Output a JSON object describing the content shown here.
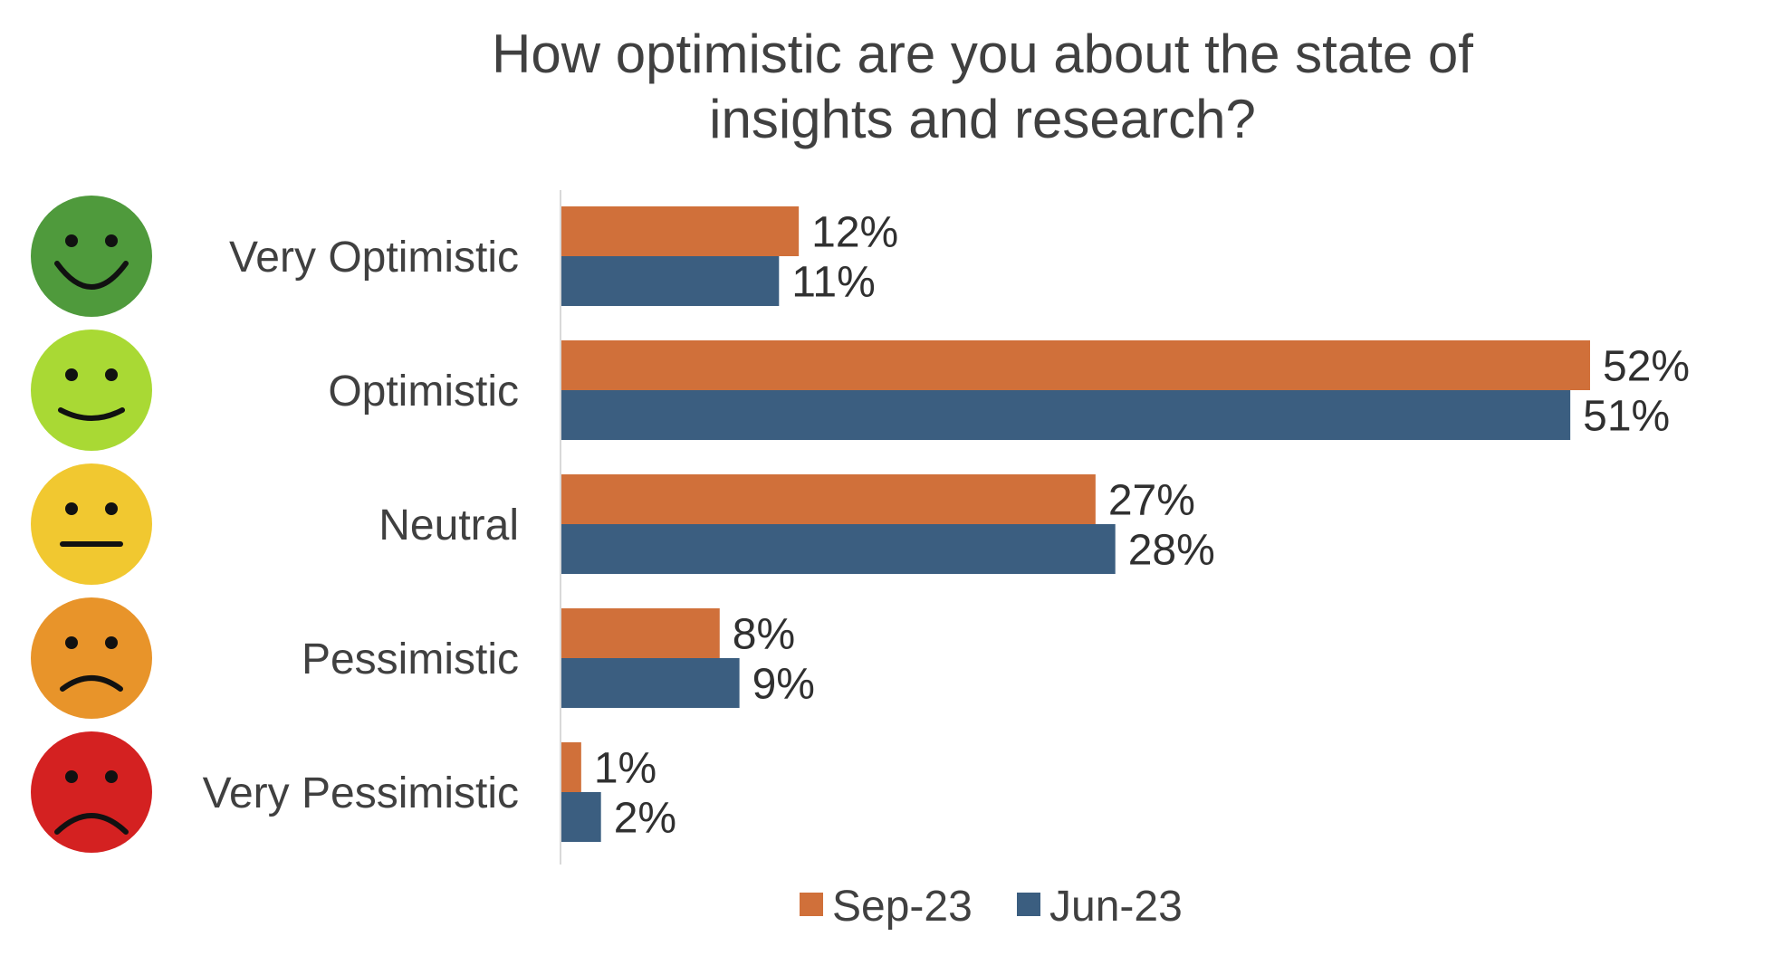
{
  "chart_data": {
    "type": "bar",
    "orientation": "horizontal",
    "title_lines": [
      "How optimistic are you about the state of",
      "insights and research?"
    ],
    "categories": [
      "Very Optimistic",
      "Optimistic",
      "Neutral",
      "Pessimistic",
      "Very Pessimistic"
    ],
    "category_icons": [
      "very-happy-face-icon",
      "happy-face-icon",
      "neutral-face-icon",
      "sad-face-icon",
      "very-sad-face-icon"
    ],
    "category_icon_colors": [
      "#4f9a3c",
      "#a9d934",
      "#f1c830",
      "#e8942a",
      "#d42121"
    ],
    "series": [
      {
        "name": "Sep-23",
        "color": "#d0703a",
        "values": [
          12,
          52,
          27,
          8,
          1
        ],
        "labels": [
          "12%",
          "52%",
          "27%",
          "8%",
          "1%"
        ]
      },
      {
        "name": "Jun-23",
        "color": "#3b5e80",
        "values": [
          11,
          51,
          28,
          9,
          2
        ],
        "labels": [
          "11%",
          "51%",
          "28%",
          "9%",
          "2%"
        ]
      }
    ],
    "xlim": [
      0,
      52
    ],
    "xlabel": "",
    "ylabel": "",
    "grid": false,
    "legend": "bottom"
  }
}
